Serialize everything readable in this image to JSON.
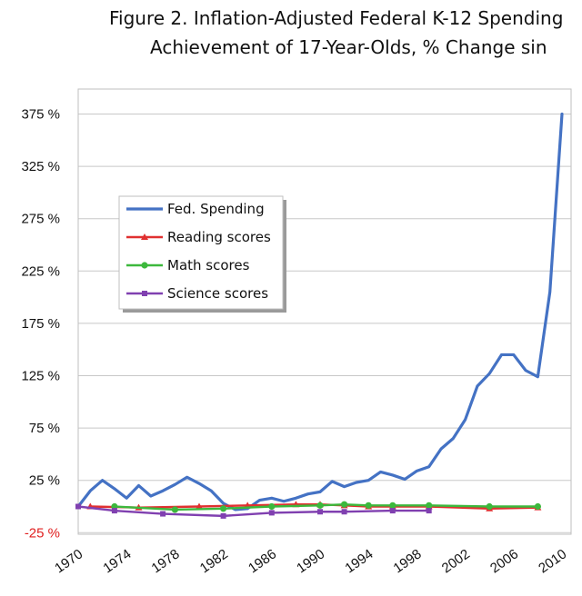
{
  "header": {
    "line1": "Figure 2.  Inflation-Adjusted Federal K-12 Spending",
    "line2": "Achievement of 17-Year-Olds, % Change sin"
  },
  "chart_data": {
    "type": "line",
    "title": "Figure 2.  Inflation-Adjusted Federal K-12 Spending / Achievement of 17-Year-Olds, % Change sin",
    "xlabel": "",
    "ylabel": "",
    "xlim": [
      1970,
      2010
    ],
    "ylim": [
      -25,
      400
    ],
    "x_ticks": [
      "1970",
      "1974",
      "1978",
      "1982",
      "1986",
      "1990",
      "1994",
      "1998",
      "2002",
      "2006",
      "2010"
    ],
    "y_ticks": [
      "375 %",
      "325 %",
      "275 %",
      "225 %",
      "175 %",
      "125 %",
      "75 %",
      "25 %",
      "-25 %"
    ],
    "grid": true,
    "legend_position": "left",
    "series": [
      {
        "name": "Fed. Spending",
        "color": "#4472c4",
        "marker": "none",
        "points": [
          [
            1970,
            0
          ],
          [
            1971,
            15
          ],
          [
            1972,
            25
          ],
          [
            1973,
            17
          ],
          [
            1974,
            8
          ],
          [
            1975,
            20
          ],
          [
            1976,
            10
          ],
          [
            1977,
            15
          ],
          [
            1978,
            21
          ],
          [
            1979,
            28
          ],
          [
            1980,
            22
          ],
          [
            1981,
            15
          ],
          [
            1982,
            3
          ],
          [
            1983,
            -3
          ],
          [
            1984,
            -2
          ],
          [
            1985,
            6
          ],
          [
            1986,
            8
          ],
          [
            1987,
            5
          ],
          [
            1988,
            8
          ],
          [
            1989,
            12
          ],
          [
            1990,
            14
          ],
          [
            1991,
            24
          ],
          [
            1992,
            19
          ],
          [
            1993,
            23
          ],
          [
            1994,
            25
          ],
          [
            1995,
            33
          ],
          [
            1996,
            30
          ],
          [
            1997,
            26
          ],
          [
            1998,
            34
          ],
          [
            1999,
            38
          ],
          [
            2000,
            55
          ],
          [
            2001,
            65
          ],
          [
            2002,
            83
          ],
          [
            2003,
            115
          ],
          [
            2004,
            127
          ],
          [
            2005,
            145
          ],
          [
            2006,
            145
          ],
          [
            2007,
            130
          ],
          [
            2008,
            124
          ],
          [
            2009,
            205
          ],
          [
            2010,
            375
          ]
        ]
      },
      {
        "name": "Reading scores",
        "color": "#e03030",
        "marker": "triangle",
        "points": [
          [
            1971,
            0
          ],
          [
            1975,
            -1
          ],
          [
            1980,
            0
          ],
          [
            1984,
            1
          ],
          [
            1988,
            2
          ],
          [
            1990,
            2
          ],
          [
            1992,
            1
          ],
          [
            1994,
            0
          ],
          [
            1996,
            0
          ],
          [
            1999,
            0
          ],
          [
            2004,
            -2
          ],
          [
            2008,
            -1
          ]
        ]
      },
      {
        "name": "Math scores",
        "color": "#3cb83c",
        "marker": "circle",
        "points": [
          [
            1973,
            0
          ],
          [
            1978,
            -3
          ],
          [
            1982,
            -2
          ],
          [
            1986,
            0
          ],
          [
            1990,
            1
          ],
          [
            1992,
            2
          ],
          [
            1994,
            1
          ],
          [
            1996,
            1
          ],
          [
            1999,
            1
          ],
          [
            2004,
            0
          ],
          [
            2008,
            0
          ]
        ]
      },
      {
        "name": "Science scores",
        "color": "#8040b0",
        "marker": "square",
        "points": [
          [
            1970,
            0
          ],
          [
            1973,
            -4
          ],
          [
            1977,
            -7
          ],
          [
            1982,
            -9
          ],
          [
            1986,
            -6
          ],
          [
            1990,
            -5
          ],
          [
            1992,
            -5
          ],
          [
            1996,
            -4
          ],
          [
            1999,
            -4
          ]
        ]
      }
    ]
  }
}
